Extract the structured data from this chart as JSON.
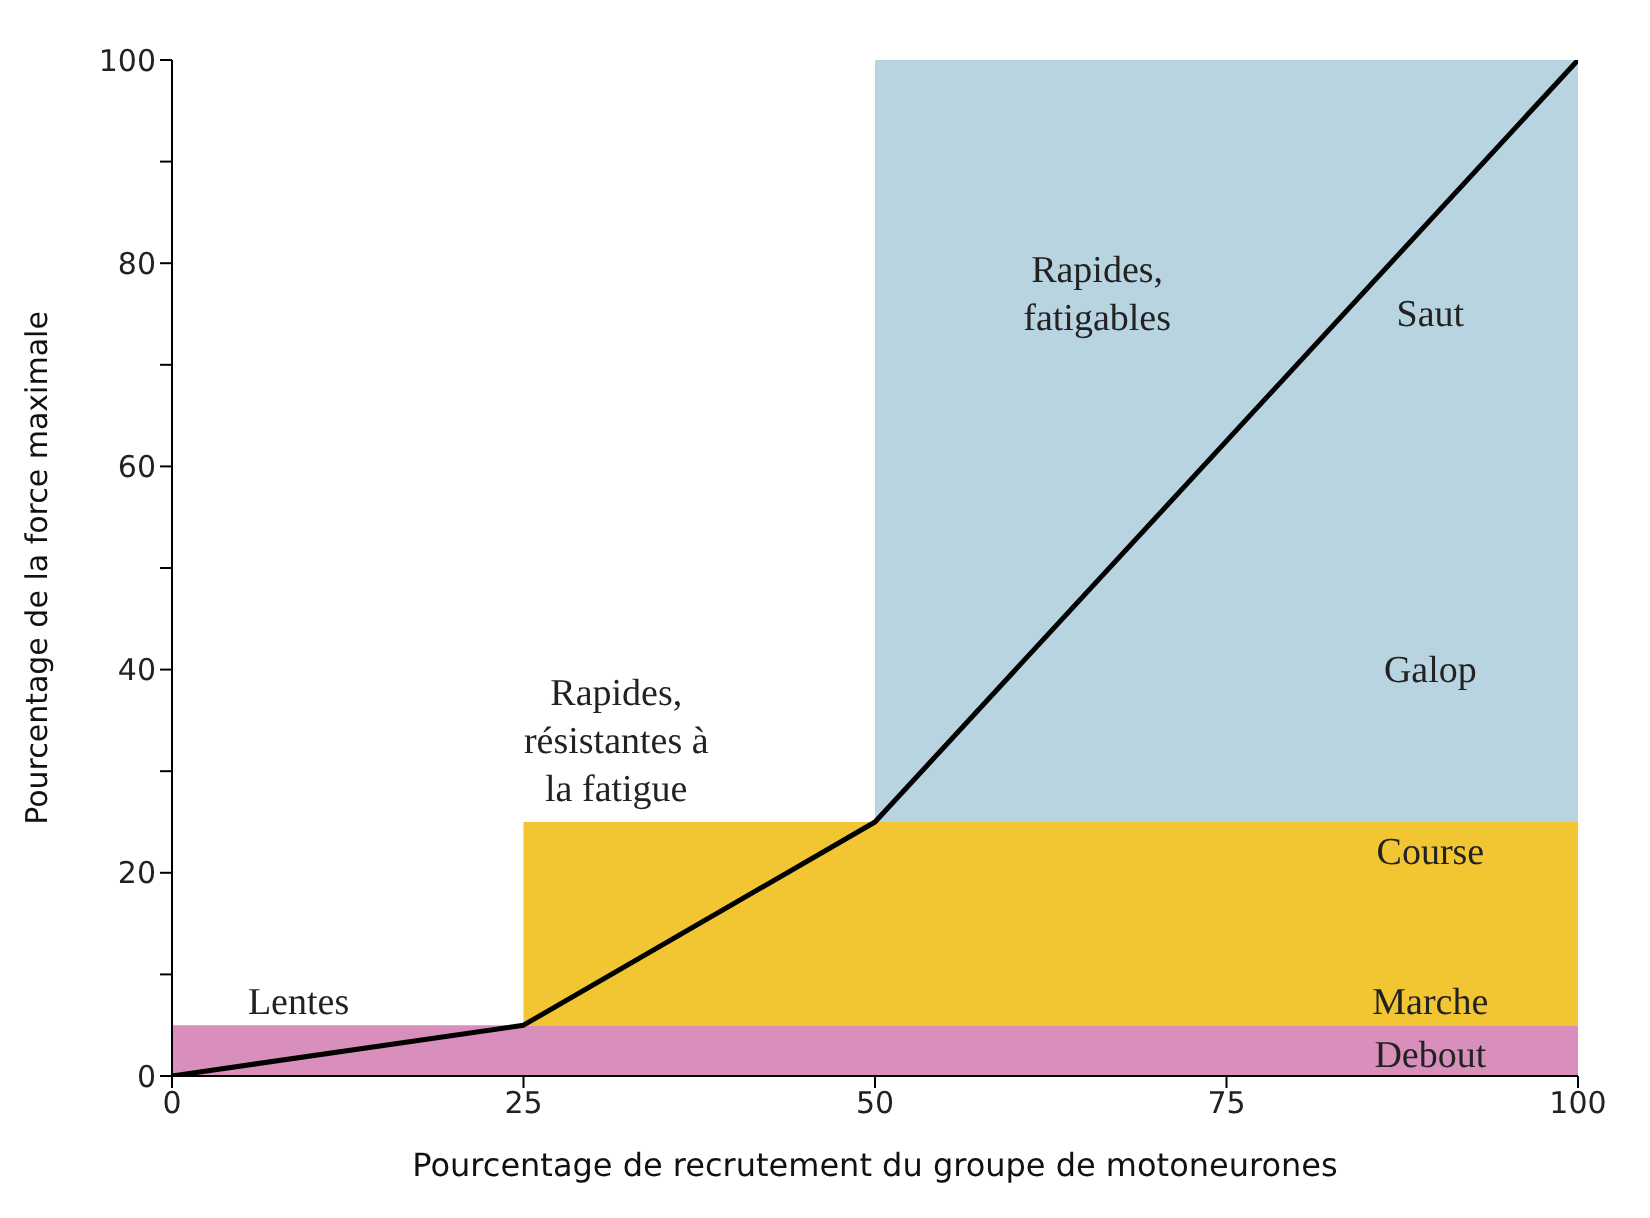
{
  "chart_data": {
    "type": "area",
    "stacked": true,
    "xlabel": "Pourcentage de recrutement du groupe de motoneurones",
    "ylabel": "Pourcentage de la force maximale",
    "xlim": [
      0,
      100
    ],
    "ylim": [
      0,
      100
    ],
    "xticks": [
      0,
      25,
      50,
      75,
      100
    ],
    "yticks": [
      0,
      {
        "value": 10,
        "label": null
      },
      20,
      {
        "value": 30,
        "label": null
      },
      40,
      {
        "value": 50,
        "label": null
      },
      60,
      {
        "value": 70,
        "label": null
      },
      80,
      {
        "value": 90,
        "label": null
      },
      100
    ],
    "series": [
      {
        "name": "Lentes",
        "color": "#d98fbb",
        "x": [
          0,
          25,
          50,
          100
        ],
        "values": [
          5,
          5,
          5,
          5
        ]
      },
      {
        "name": "Rapides, résistantes à la fatigue",
        "color": "#f2c632",
        "x": [
          25,
          50,
          100
        ],
        "values": [
          20,
          20,
          20
        ]
      },
      {
        "name": "Rapides, fatigables",
        "color": "#b9d4e1",
        "x": [
          50,
          100
        ],
        "values": [
          75,
          75
        ]
      },
      {
        "type": "line",
        "color": "#000000",
        "x": [
          0,
          25,
          50,
          100
        ],
        "values": [
          0,
          5,
          25,
          100
        ]
      }
    ],
    "annotations": [
      "Saut",
      "Galop",
      "Course",
      "Marche",
      "Debout"
    ]
  }
}
